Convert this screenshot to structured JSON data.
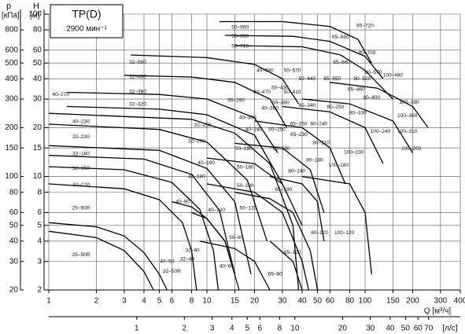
{
  "chart_data": {
    "type": "line",
    "title": "TP(D)",
    "subtitle": "2900 мин⁻¹",
    "y_label": "H",
    "y_unit": "[м]",
    "y2_label": "p",
    "y2_unit": "[кПа]",
    "x_label": "Q [м³/ч]",
    "x2_label": "[л/с]",
    "log_x": true,
    "log_y": true,
    "grid": true,
    "color": "#000000",
    "xlim": [
      1,
      400
    ],
    "xticks": [
      1,
      2,
      3,
      4,
      5,
      6,
      8,
      10,
      15,
      20,
      30,
      40,
      50,
      60,
      80,
      100,
      150,
      200,
      300,
      400
    ],
    "x2lim": [
      0.278,
      111
    ],
    "x2ticks": [
      1,
      2,
      3,
      4,
      5,
      6,
      8,
      10,
      20,
      30,
      40,
      50,
      60,
      70
    ],
    "ylim": [
      2,
      100
    ],
    "yticks": [
      2,
      3,
      4,
      5,
      6,
      8,
      10,
      15,
      20,
      30,
      40,
      50,
      60,
      80,
      100
    ],
    "y2lim": [
      20,
      1000
    ],
    "y2ticks": [
      20,
      30,
      40,
      50,
      60,
      80,
      100,
      150,
      200,
      300,
      400,
      500,
      600,
      800
    ],
    "series": [
      {
        "x": [
          1,
          2,
          3,
          4,
          5,
          5.6
        ],
        "values": [
          5.2,
          4.9,
          4.3,
          3.4,
          2.5,
          2
        ]
      },
      {
        "x": [
          1,
          2,
          3,
          4,
          4.6
        ],
        "values": [
          4.6,
          4.2,
          3.5,
          2.6,
          2
        ]
      },
      {
        "x": [
          1,
          3,
          5,
          7,
          8,
          8.6
        ],
        "values": [
          9,
          8.4,
          7.2,
          5.2,
          3.5,
          2
        ]
      },
      {
        "x": [
          1,
          3,
          6,
          9,
          11,
          11.8
        ],
        "values": [
          11.5,
          11,
          9.2,
          6.3,
          3.5,
          2
        ]
      },
      {
        "x": [
          1,
          4,
          8,
          12,
          15
        ],
        "values": [
          13.5,
          12.8,
          10.3,
          6.2,
          2.5
        ]
      },
      {
        "x": [
          1,
          5,
          10,
          15,
          19
        ],
        "values": [
          15.5,
          14.5,
          11.2,
          7,
          2.5
        ]
      },
      {
        "x": [
          1,
          5,
          10,
          18,
          24
        ],
        "values": [
          21,
          19.5,
          16.3,
          9.5,
          4
        ]
      },
      {
        "x": [
          1,
          8,
          15,
          25,
          35,
          38
        ],
        "values": [
          24.5,
          22.5,
          18.5,
          12,
          5,
          2
        ]
      },
      {
        "x": [
          1.3,
          5,
          10,
          20,
          30
        ],
        "values": [
          27,
          26,
          24,
          18,
          9
        ]
      },
      {
        "x": [
          1.3,
          5,
          10,
          20,
          28
        ],
        "values": [
          33,
          32,
          30,
          23,
          14
        ]
      },
      {
        "x": [
          3,
          8,
          15,
          25,
          32
        ],
        "values": [
          42,
          41,
          38,
          30,
          20
        ]
      },
      {
        "x": [
          3.3,
          10,
          20,
          30,
          38
        ],
        "values": [
          56,
          54,
          49,
          40,
          28
        ]
      },
      {
        "x": [
          12,
          30,
          60,
          90,
          110
        ],
        "values": [
          90,
          90,
          84,
          70,
          50
        ]
      },
      {
        "x": [
          13,
          35,
          60,
          100,
          130
        ],
        "values": [
          74,
          73,
          68,
          55,
          40
        ]
      },
      {
        "x": [
          15,
          40,
          70,
          100,
          150
        ],
        "values": [
          64,
          63,
          56,
          45,
          30
        ]
      },
      {
        "x": [
          6,
          8,
          10,
          13,
          16
        ],
        "values": [
          7,
          6.5,
          5.5,
          4,
          2
        ]
      },
      {
        "x": [
          8,
          10,
          13,
          15
        ],
        "values": [
          6,
          5.5,
          4,
          2.5
        ]
      },
      {
        "x": [
          10,
          20,
          30,
          40,
          44
        ],
        "values": [
          9,
          8,
          6,
          3,
          2
        ]
      },
      {
        "x": [
          15,
          25,
          35,
          45,
          50
        ],
        "values": [
          8,
          7.3,
          6,
          3.5,
          2
        ]
      },
      {
        "x": [
          25,
          40,
          50,
          55
        ],
        "values": [
          10,
          9,
          7,
          4
        ]
      },
      {
        "x": [
          40,
          80,
          100,
          110
        ],
        "values": [
          10,
          9,
          6,
          2.5
        ]
      },
      {
        "x": [
          10,
          20,
          30,
          40
        ],
        "values": [
          13,
          12,
          9,
          5
        ]
      },
      {
        "x": [
          15,
          30,
          45,
          55
        ],
        "values": [
          16,
          15,
          11,
          6
        ]
      },
      {
        "x": [
          20,
          40,
          60,
          75
        ],
        "values": [
          22,
          20,
          15,
          9
        ]
      },
      {
        "x": [
          30,
          60,
          100,
          130
        ],
        "values": [
          27,
          25,
          20,
          12
        ]
      },
      {
        "x": [
          40,
          80,
          150,
          200
        ],
        "values": [
          30,
          28,
          22,
          14
        ]
      },
      {
        "x": [
          60,
          120,
          200,
          250
        ],
        "values": [
          38,
          35,
          27,
          20
        ]
      },
      {
        "x": [
          9,
          15,
          20,
          25
        ],
        "values": [
          4,
          3.6,
          3,
          2
        ]
      },
      {
        "x": [
          25,
          35,
          40
        ],
        "values": [
          4,
          3,
          2
        ]
      }
    ],
    "annotations": [
      {
        "text": "50–900",
        "x": 16.2,
        "y": 82.8
      },
      {
        "text": "65–930",
        "x": 70,
        "y": 72
      },
      {
        "text": "65–720",
        "x": 100,
        "y": 84.6
      },
      {
        "text": "50–830",
        "x": 16.2,
        "y": 73
      },
      {
        "text": "50–710",
        "x": 16.2,
        "y": 63.3
      },
      {
        "text": "80–700",
        "x": 103,
        "y": 57.8
      },
      {
        "text": "32–580",
        "x": 3.65,
        "y": 50.6
      },
      {
        "text": "65–660",
        "x": 71,
        "y": 50.6
      },
      {
        "text": "80–570",
        "x": 113,
        "y": 43.8
      },
      {
        "text": "100–480",
        "x": 150,
        "y": 42
      },
      {
        "text": "32–460",
        "x": 3.65,
        "y": 41
      },
      {
        "text": "50–570",
        "x": 34.7,
        "y": 45
      },
      {
        "text": "50–440",
        "x": 43,
        "y": 40
      },
      {
        "text": "65–550",
        "x": 62,
        "y": 40
      },
      {
        "text": "80–520",
        "x": 96,
        "y": 40
      },
      {
        "text": "40–580",
        "x": 23.3,
        "y": 45
      },
      {
        "text": "50–430",
        "x": 29,
        "y": 35.1
      },
      {
        "text": "65–460",
        "x": 88,
        "y": 34.4
      },
      {
        "text": "40–270",
        "x": 1.19,
        "y": 32
      },
      {
        "text": "32–380",
        "x": 3.65,
        "y": 33.3
      },
      {
        "text": "40–470",
        "x": 22.3,
        "y": 33
      },
      {
        "text": "50–410",
        "x": 34.7,
        "y": 33
      },
      {
        "text": "80–400",
        "x": 110,
        "y": 30.6
      },
      {
        "text": "100–390",
        "x": 190,
        "y": 28.6
      },
      {
        "text": "32–320",
        "x": 3.65,
        "y": 27.9
      },
      {
        "text": "50–290",
        "x": 15.3,
        "y": 29.5
      },
      {
        "text": "40–360",
        "x": 25,
        "y": 26.3
      },
      {
        "text": "50–380",
        "x": 29.3,
        "y": 28.4
      },
      {
        "text": "65–340",
        "x": 43,
        "y": 27.3
      },
      {
        "text": "80–250",
        "x": 65,
        "y": 26.8
      },
      {
        "text": "80–330",
        "x": 90,
        "y": 24.6
      },
      {
        "text": "100–360",
        "x": 185,
        "y": 23.7
      },
      {
        "text": "40–300",
        "x": 18.1,
        "y": 23
      },
      {
        "text": "65–260",
        "x": 38,
        "y": 21
      },
      {
        "text": "80–240",
        "x": 51,
        "y": 21
      },
      {
        "text": "40–230",
        "x": 1.6,
        "y": 21.8
      },
      {
        "text": "32–250",
        "x": 9.4,
        "y": 20.7
      },
      {
        "text": "40–240",
        "x": 19.8,
        "y": 19.5
      },
      {
        "text": "50–250",
        "x": 27.7,
        "y": 19.5
      },
      {
        "text": "65–230",
        "x": 38.2,
        "y": 18.1
      },
      {
        "text": "100–310",
        "x": 185,
        "y": 18.9
      },
      {
        "text": "100–240",
        "x": 125,
        "y": 18.9
      },
      {
        "text": "32–230",
        "x": 1.6,
        "y": 17.5
      },
      {
        "text": "32–200",
        "x": 8.6,
        "y": 16.5
      },
      {
        "text": "80–210",
        "x": 52.7,
        "y": 16.1
      },
      {
        "text": "65–190",
        "x": 29.6,
        "y": 14.8
      },
      {
        "text": "50–190",
        "x": 17.1,
        "y": 14.8
      },
      {
        "text": "100–230",
        "x": 85,
        "y": 14.1
      },
      {
        "text": "100–250",
        "x": 196,
        "y": 14.8
      },
      {
        "text": "32–180",
        "x": 1.6,
        "y": 13.8
      },
      {
        "text": "80–180",
        "x": 48,
        "y": 12.6
      },
      {
        "text": "40–190",
        "x": 9.9,
        "y": 12.1
      },
      {
        "text": "100–180",
        "x": 68,
        "y": 11.7
      },
      {
        "text": "50–160",
        "x": 17.5,
        "y": 11.4
      },
      {
        "text": "32–150",
        "x": 1.6,
        "y": 11.2
      },
      {
        "text": "80–140",
        "x": 37,
        "y": 10.8
      },
      {
        "text": "40–180",
        "x": 8.6,
        "y": 10
      },
      {
        "text": "50–180",
        "x": 17.5,
        "y": 8.8
      },
      {
        "text": "32–120",
        "x": 1.6,
        "y": 8.9
      },
      {
        "text": "65–180",
        "x": 30.5,
        "y": 8.3
      },
      {
        "text": "40–90",
        "x": 7,
        "y": 7
      },
      {
        "text": "25–90R",
        "x": 1.6,
        "y": 6.4
      },
      {
        "text": "50–120",
        "x": 18.2,
        "y": 6.4
      },
      {
        "text": "40–120",
        "x": 11.5,
        "y": 6.2
      },
      {
        "text": "50–60",
        "x": 15.3,
        "y": 4.2
      },
      {
        "text": "32–90",
        "x": 8.1,
        "y": 3.5
      },
      {
        "text": "80–120",
        "x": 51.5,
        "y": 4.5
      },
      {
        "text": "100–120",
        "x": 74,
        "y": 4.5
      },
      {
        "text": "65–120",
        "x": 34.8,
        "y": 3.4
      },
      {
        "text": "25–50R",
        "x": 1.6,
        "y": 3.3
      },
      {
        "text": "40–50",
        "x": 5.6,
        "y": 3
      },
      {
        "text": "32–40",
        "x": 7.5,
        "y": 3.1
      },
      {
        "text": "40–60",
        "x": 13.3,
        "y": 2.8
      },
      {
        "text": "32–50R",
        "x": 6,
        "y": 2.6
      },
      {
        "text": "65–60",
        "x": 27,
        "y": 2.5
      }
    ]
  }
}
